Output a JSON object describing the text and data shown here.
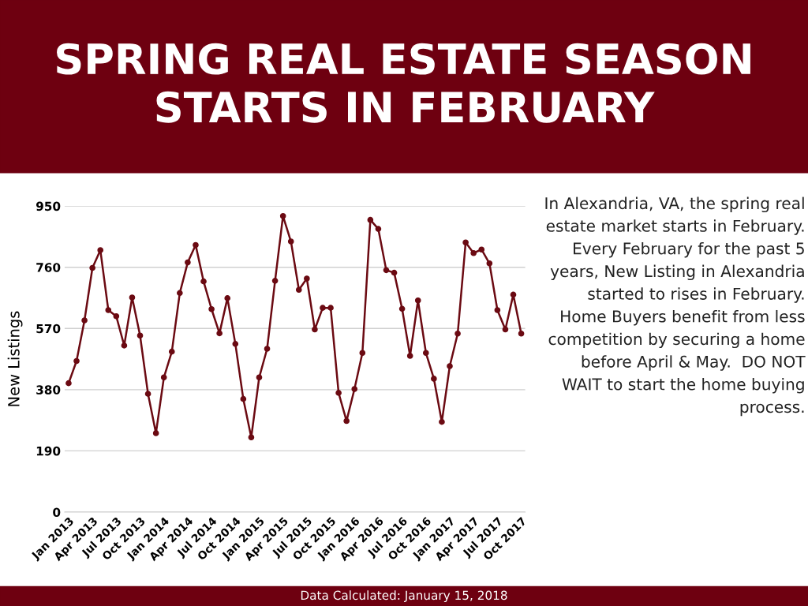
{
  "chart_data": {
    "type": "line",
    "title": "SPRING REAL ESTATE SEASON\nSTARTS IN FEBRUARY",
    "ylabel": "New Listings",
    "categories": [
      "Jan 2013",
      null,
      null,
      "Apr 2013",
      null,
      null,
      "Jul 2013",
      null,
      null,
      "Oct 2013",
      null,
      null,
      "Jan 2014",
      null,
      null,
      "Apr 2014",
      null,
      null,
      "Jul 2014",
      null,
      null,
      "Oct 2014",
      null,
      null,
      "Jan 2015",
      null,
      null,
      "Apr 2015",
      null,
      null,
      "Jul 2015",
      null,
      null,
      "Oct 2015",
      null,
      null,
      "Jan 2016",
      null,
      null,
      "Apr 2016",
      null,
      null,
      "Jul 2016",
      null,
      null,
      "Oct 2016",
      null,
      null,
      "Jan 2017",
      null,
      null,
      "Apr 2017",
      null,
      null,
      "Jul 2017",
      null,
      null,
      "Oct 2017"
    ],
    "series": [
      {
        "color": "#6b0a12",
        "values": [
          400,
          469,
          595,
          758,
          813,
          627,
          608,
          517,
          666,
          548,
          367,
          245,
          418,
          498,
          680,
          775,
          829,
          716,
          630,
          555,
          664,
          522,
          351,
          232,
          418,
          507,
          718,
          919,
          840,
          690,
          725,
          567,
          634,
          634,
          370,
          283,
          382,
          494,
          907,
          879,
          751,
          743,
          631,
          485,
          657,
          494,
          414,
          280,
          453,
          554,
          837,
          804,
          815,
          772,
          627,
          567,
          675,
          554
        ]
      }
    ],
    "ylim": [
      0,
      950
    ],
    "yticks": [
      0,
      190,
      380,
      570,
      760,
      950
    ],
    "grid": "y",
    "marker": "circle",
    "line_style": "solid",
    "legend": false,
    "annotations": [
      "In Alexandria, VA, the spring real estate market starts in February. Every February for the past 5 years, New Listing in Alexandria started to rises in February. Home Buyers benefit from less competition by securing a home before April & May.  DO NOT WAIT to start the home buying process.",
      "Data Calculated: January 15, 2018"
    ]
  }
}
